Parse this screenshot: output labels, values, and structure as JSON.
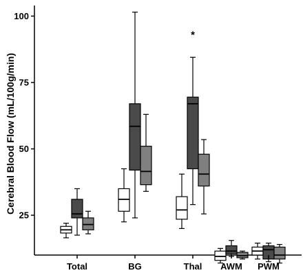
{
  "chart_data": {
    "type": "box",
    "ylabel": "Cerebral Blood Flow (mL/100g/min)",
    "y_ticks": [
      25,
      50,
      75,
      100
    ],
    "ylim": [
      10,
      104
    ],
    "grid": false,
    "categories": [
      "Total",
      "BG",
      "Thal",
      "AWM",
      "PWM"
    ],
    "series_colors": [
      "#ffffff",
      "#4a4a4a",
      "#808080"
    ],
    "groups": [
      {
        "category": "Total",
        "boxes": [
          {
            "min": 16.5,
            "q1": 18.3,
            "median": 19.5,
            "q3": 20.8,
            "max": 22.0
          },
          {
            "min": 17.5,
            "q1": 24.0,
            "median": 25.5,
            "q3": 31.0,
            "max": 35.0
          },
          {
            "min": 18.0,
            "q1": 19.5,
            "median": 21.5,
            "q3": 24.0,
            "max": 26.5
          }
        ]
      },
      {
        "category": "BG",
        "boxes": [
          {
            "min": 22.5,
            "q1": 26.5,
            "median": 31.0,
            "q3": 35.0,
            "max": 42.5
          },
          {
            "min": 24.0,
            "q1": 42.0,
            "median": 58.5,
            "q3": 67.0,
            "max": 101.5
          },
          {
            "min": 34.0,
            "q1": 36.5,
            "median": 41.5,
            "q3": 51.0,
            "max": 63.0
          }
        ]
      },
      {
        "category": "Thal",
        "boxes": [
          {
            "min": 20.0,
            "q1": 23.5,
            "median": 27.0,
            "q3": 32.0,
            "max": 40.5
          },
          {
            "min": 29.0,
            "q1": 42.5,
            "median": 67.0,
            "q3": 69.5,
            "max": 84.5
          },
          {
            "min": 25.5,
            "q1": 36.0,
            "median": 40.5,
            "q3": 48.0,
            "max": 53.5
          }
        ]
      },
      {
        "category": "AWM",
        "boxes": [
          {
            "min": 7.0,
            "q1": 8.0,
            "median": 9.5,
            "q3": 11.5,
            "max": 12.5
          },
          {
            "min": 9.5,
            "q1": 10.5,
            "median": 11.5,
            "q3": 13.5,
            "max": 15.5
          },
          {
            "min": 8.5,
            "q1": 9.0,
            "median": 9.8,
            "q3": 11.0,
            "max": 11.5
          }
        ]
      },
      {
        "category": "PWM",
        "boxes": [
          {
            "min": 8.5,
            "q1": 10.0,
            "median": 11.5,
            "q3": 13.0,
            "max": 14.5
          },
          {
            "min": 7.5,
            "q1": 8.5,
            "median": 12.0,
            "q3": 13.5,
            "max": 14.5
          },
          {
            "min": 7.0,
            "q1": 8.5,
            "median": 10.0,
            "q3": 13.0,
            "max": 14.0
          }
        ]
      }
    ],
    "annotations": [
      {
        "text": "*",
        "category": "Thal",
        "y": 93
      }
    ]
  }
}
